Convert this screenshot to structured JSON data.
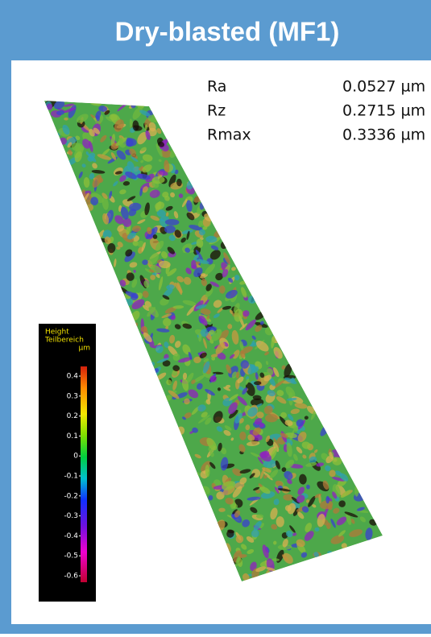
{
  "header": {
    "title": "Dry-blasted (MF1)"
  },
  "parameters": [
    {
      "name": "Ra",
      "value": "0.0527 µm"
    },
    {
      "name": "Rz",
      "value": "0.2715 µm"
    },
    {
      "name": "Rmax",
      "value": "0.3336 µm"
    }
  ],
  "colorbar": {
    "title": [
      "Height",
      "Teilbereich"
    ],
    "unit": "µm",
    "ticks": [
      "0.4",
      "0.3",
      "0.2",
      "0.1",
      "0",
      "-0.1",
      "-0.2",
      "-0.3",
      "-0.4",
      "-0.5",
      "-0.6"
    ]
  }
}
